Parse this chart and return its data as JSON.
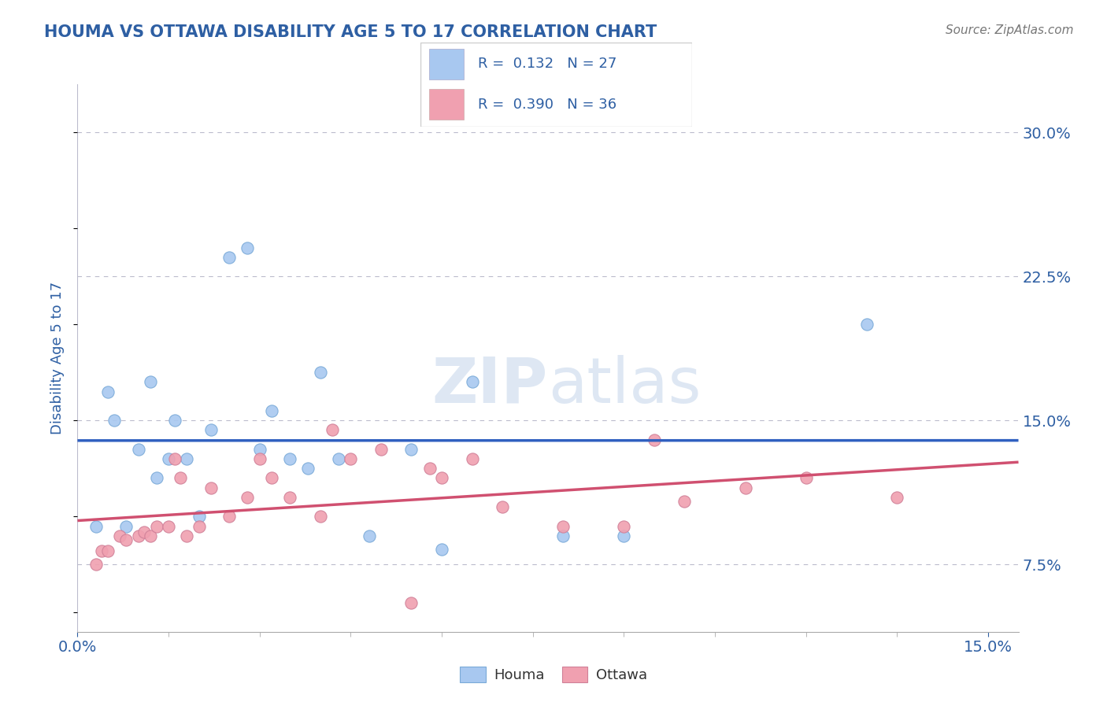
{
  "title": "HOUMA VS OTTAWA DISABILITY AGE 5 TO 17 CORRELATION CHART",
  "source_text": "Source: ZipAtlas.com",
  "ylabel": "Disability Age 5 to 17",
  "title_color": "#2E5FA3",
  "axis_color": "#2E5FA3",
  "houma_color": "#A8C8F0",
  "ottawa_color": "#F0A0B0",
  "houma_line_color": "#3060C0",
  "ottawa_line_color": "#D05070",
  "watermark_color": "#C8D8EC",
  "xlim": [
    0.0,
    0.155
  ],
  "ylim": [
    0.04,
    0.325
  ],
  "houma_x": [
    0.003,
    0.005,
    0.006,
    0.008,
    0.01,
    0.012,
    0.013,
    0.015,
    0.016,
    0.018,
    0.02,
    0.022,
    0.025,
    0.028,
    0.03,
    0.032,
    0.035,
    0.038,
    0.04,
    0.043,
    0.048,
    0.055,
    0.06,
    0.065,
    0.08,
    0.09,
    0.13
  ],
  "houma_y": [
    0.095,
    0.165,
    0.15,
    0.095,
    0.135,
    0.17,
    0.12,
    0.13,
    0.15,
    0.13,
    0.1,
    0.145,
    0.235,
    0.24,
    0.135,
    0.155,
    0.13,
    0.125,
    0.175,
    0.13,
    0.09,
    0.135,
    0.083,
    0.17,
    0.09,
    0.09,
    0.2
  ],
  "ottawa_x": [
    0.003,
    0.004,
    0.005,
    0.007,
    0.008,
    0.01,
    0.011,
    0.012,
    0.013,
    0.015,
    0.016,
    0.017,
    0.018,
    0.02,
    0.022,
    0.025,
    0.028,
    0.03,
    0.032,
    0.035,
    0.04,
    0.042,
    0.045,
    0.05,
    0.055,
    0.058,
    0.06,
    0.065,
    0.07,
    0.08,
    0.09,
    0.095,
    0.1,
    0.11,
    0.12,
    0.135
  ],
  "ottawa_y": [
    0.075,
    0.082,
    0.082,
    0.09,
    0.088,
    0.09,
    0.092,
    0.09,
    0.095,
    0.095,
    0.13,
    0.12,
    0.09,
    0.095,
    0.115,
    0.1,
    0.11,
    0.13,
    0.12,
    0.11,
    0.1,
    0.145,
    0.13,
    0.135,
    0.055,
    0.125,
    0.12,
    0.13,
    0.105,
    0.095,
    0.095,
    0.14,
    0.108,
    0.115,
    0.12,
    0.11
  ],
  "y_ticks": [
    0.075,
    0.15,
    0.225,
    0.3
  ],
  "y_tick_labels": [
    "7.5%",
    "15.0%",
    "22.5%",
    "30.0%"
  ],
  "x_ticks": [
    0.0,
    0.15
  ],
  "x_tick_labels": [
    "0.0%",
    "15.0%"
  ]
}
